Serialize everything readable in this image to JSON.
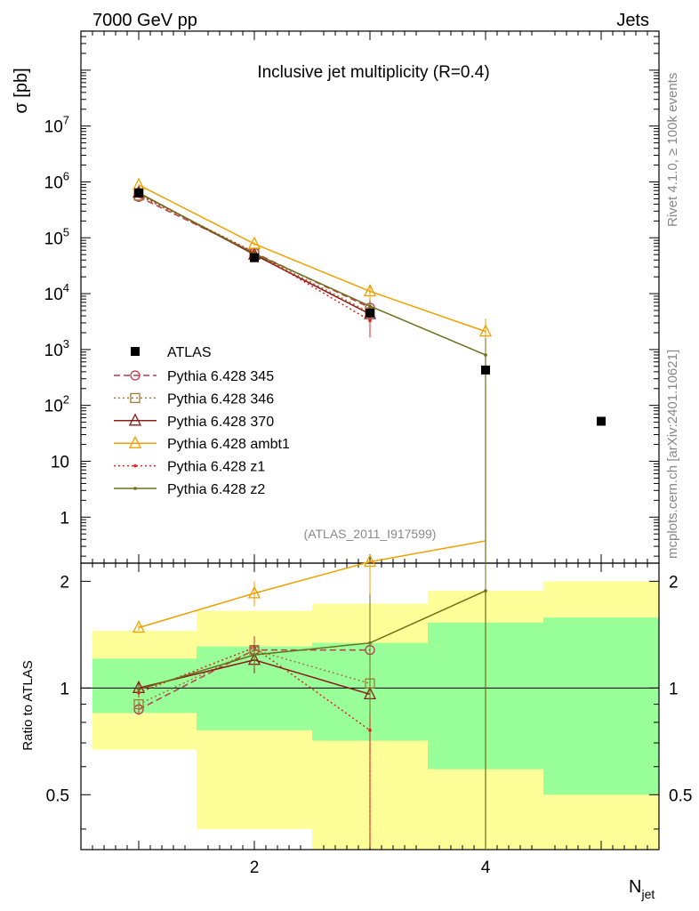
{
  "header": {
    "left": "7000 GeV pp",
    "right": "Jets"
  },
  "side_labels": {
    "rivet": "Rivet 4.1.0, ≥ 100k events",
    "mcplots": "mcplots.cern.ch [arXiv:2401.10621]"
  },
  "chart_data": [
    {
      "type": "line",
      "title": "Inclusive jet multiplicity (R=0.4)",
      "watermark": "(ATLAS_2011_I917599)",
      "ylabel": "σ [pb]",
      "yscale": "log",
      "ylim": [
        0.15,
        500000000
      ],
      "xlim": [
        0.5,
        5.5
      ],
      "ytick_labels": [
        "1",
        "10",
        "10^2",
        "10^3",
        "10^4",
        "10^5",
        "10^6",
        "10^7"
      ],
      "ytick_values": [
        1,
        10,
        100,
        1000,
        10000,
        100000,
        1000000,
        10000000
      ],
      "legend_position": "center-left",
      "data": {
        "name": "ATLAS",
        "x": [
          1,
          2,
          3,
          4,
          5
        ],
        "y": [
          640000,
          44000,
          4500,
          430,
          52
        ]
      },
      "series": [
        {
          "name": "Pythia 6.428 345",
          "color": "#c0364c",
          "style": "dashed",
          "marker": "circle",
          "x": [
            1,
            2,
            3
          ],
          "y": [
            540000,
            54000,
            5600
          ],
          "yerr": [
            0.03,
            0.05,
            0.3
          ]
        },
        {
          "name": "Pythia 6.428 346",
          "color": "#a07838",
          "style": "dotted",
          "marker": "square",
          "x": [
            1,
            2,
            3
          ],
          "y": [
            570000,
            53000,
            4600
          ],
          "yerr": [
            0.03,
            0.05,
            0.3
          ]
        },
        {
          "name": "Pythia 6.428 370",
          "color": "#8b1a1a",
          "style": "solid",
          "marker": "triangle",
          "x": [
            1,
            2,
            3
          ],
          "y": [
            640000,
            50000,
            4300
          ],
          "yerr": [
            0.03,
            0.05,
            0.3
          ]
        },
        {
          "name": "Pythia 6.428 ambt1",
          "color": "#f0a000",
          "style": "solid",
          "marker": "triangle",
          "x": [
            1,
            2,
            3,
            4
          ],
          "y": [
            880000,
            78000,
            11000,
            2100
          ],
          "yerr": [
            0.03,
            0.08,
            0.3,
            0.7
          ]
        },
        {
          "name": "Pythia 6.428 z1",
          "color": "#dd2222",
          "style": "dotted",
          "marker": "dot",
          "x": [
            1,
            2,
            3
          ],
          "y": [
            600000,
            55000,
            3300
          ],
          "yerr": [
            0.03,
            0.05,
            0.5
          ]
        },
        {
          "name": "Pythia 6.428 z2",
          "color": "#6b7018",
          "style": "solid",
          "marker": "dot",
          "x": [
            1,
            2,
            3,
            4
          ],
          "y": [
            630000,
            52000,
            6000,
            800
          ],
          "yerr": [
            0.03,
            0.05,
            0.3,
            1.0
          ]
        }
      ]
    },
    {
      "type": "line",
      "ylabel": "Ratio to ATLAS",
      "xlabel": "N",
      "xlabel_sub": "jet",
      "xlim": [
        0.5,
        5.5
      ],
      "ylim": [
        0.35,
        2.25
      ],
      "xtick_labels": [
        "2",
        "4"
      ],
      "xtick_values": [
        2,
        4
      ],
      "ytick_labels": [
        "0.5",
        "1",
        "2"
      ],
      "ytick_values": [
        0.5,
        1,
        2
      ],
      "uncertainty_bands": {
        "bins": [
          [
            0.6,
            1.5
          ],
          [
            1.5,
            2.5
          ],
          [
            2.5,
            3.5
          ],
          [
            3.5,
            4.5
          ],
          [
            4.5,
            5.5
          ]
        ],
        "stat_low": [
          0.85,
          0.76,
          0.71,
          0.59,
          0.5
        ],
        "stat_high": [
          1.21,
          1.31,
          1.34,
          1.53,
          1.58
        ],
        "total_low": [
          0.67,
          0.4,
          0.3,
          0.3,
          0.3
        ],
        "total_high": [
          1.45,
          1.65,
          1.73,
          1.88,
          2.0
        ]
      },
      "series": [
        {
          "name": "Pythia 6.428 345",
          "x": [
            1,
            2,
            3
          ],
          "y": [
            0.87,
            1.28,
            1.28
          ]
        },
        {
          "name": "Pythia 6.428 346",
          "x": [
            1,
            2,
            3
          ],
          "y": [
            0.9,
            1.28,
            1.03
          ]
        },
        {
          "name": "Pythia 6.428 370",
          "x": [
            1,
            2,
            3
          ],
          "y": [
            1.0,
            1.2,
            0.96
          ]
        },
        {
          "name": "Pythia 6.428 ambt1",
          "x": [
            1,
            2,
            3,
            4
          ],
          "y": [
            1.48,
            1.85,
            2.27,
            2.6
          ]
        },
        {
          "name": "Pythia 6.428 z1",
          "x": [
            1,
            2,
            3
          ],
          "y": [
            0.97,
            1.3,
            0.76
          ]
        },
        {
          "name": "Pythia 6.428 z2",
          "x": [
            1,
            2,
            3,
            4
          ],
          "y": [
            0.99,
            1.24,
            1.34,
            1.88
          ]
        }
      ]
    }
  ]
}
